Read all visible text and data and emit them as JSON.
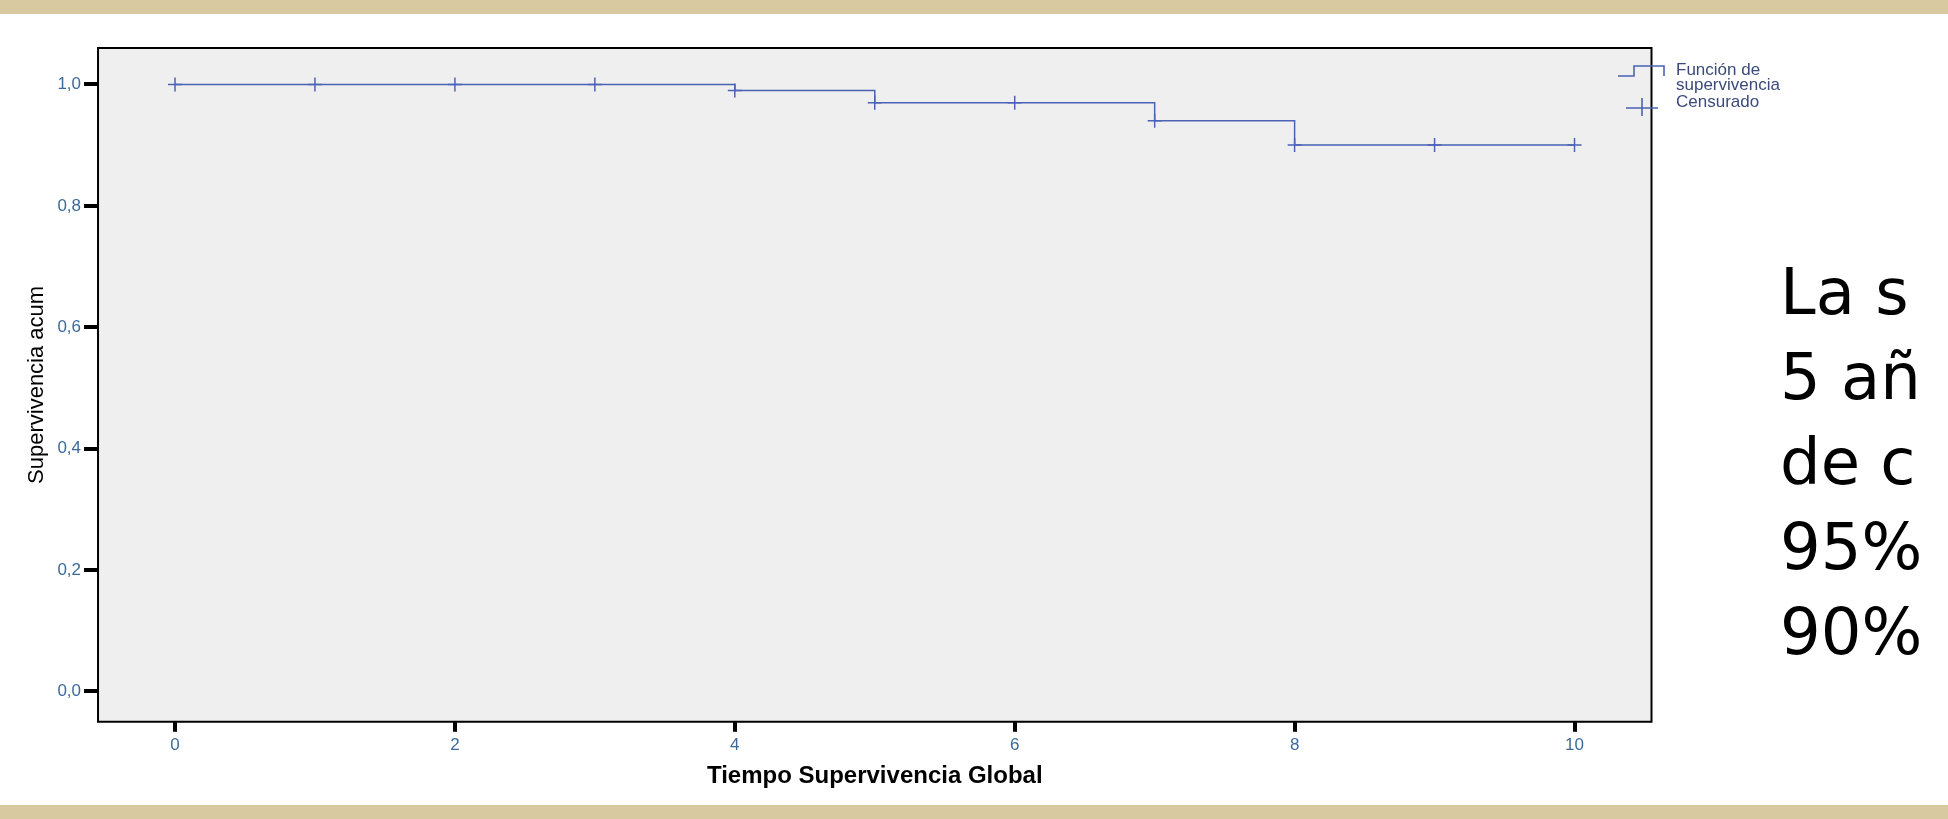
{
  "chart_data": {
    "type": "step",
    "xlabel": "Tiempo Supervivencia Global",
    "ylabel": "Supervivencia acum",
    "series": [
      {
        "name": "Función de supervivencia",
        "color": "#4a63b5",
        "x": [
          0,
          4,
          5,
          7,
          8,
          10
        ],
        "values": [
          1.0,
          0.99,
          0.97,
          0.94,
          0.9,
          0.9
        ]
      },
      {
        "name": "Censurado",
        "type": "scatter",
        "color": "#4a63b5",
        "marker": "cross",
        "x": [
          0,
          1,
          2,
          3,
          4,
          5,
          6,
          7,
          8,
          9,
          10
        ],
        "values": [
          1.0,
          1.0,
          1.0,
          1.0,
          0.99,
          0.97,
          0.97,
          0.94,
          0.9,
          0.9,
          0.9
        ]
      }
    ],
    "xlim": [
      -0.55,
      10.55
    ],
    "xticks": [
      0,
      2,
      4,
      6,
      8,
      10
    ],
    "ylim": [
      -0.05,
      1.06
    ],
    "yticks": [
      {
        "value": 0,
        "label": "0,0"
      },
      {
        "value": 0.2,
        "label": "0,2"
      },
      {
        "value": 0.4,
        "label": "0,4"
      },
      {
        "value": 0.6,
        "label": "0,6"
      },
      {
        "value": 0.8,
        "label": "0,8"
      },
      {
        "value": 1,
        "label": "1,0"
      }
    ],
    "grid": false,
    "legend": "top right",
    "annotations": [
      "La s",
      "5 añ",
      "de c",
      "95%",
      "90%"
    ]
  }
}
